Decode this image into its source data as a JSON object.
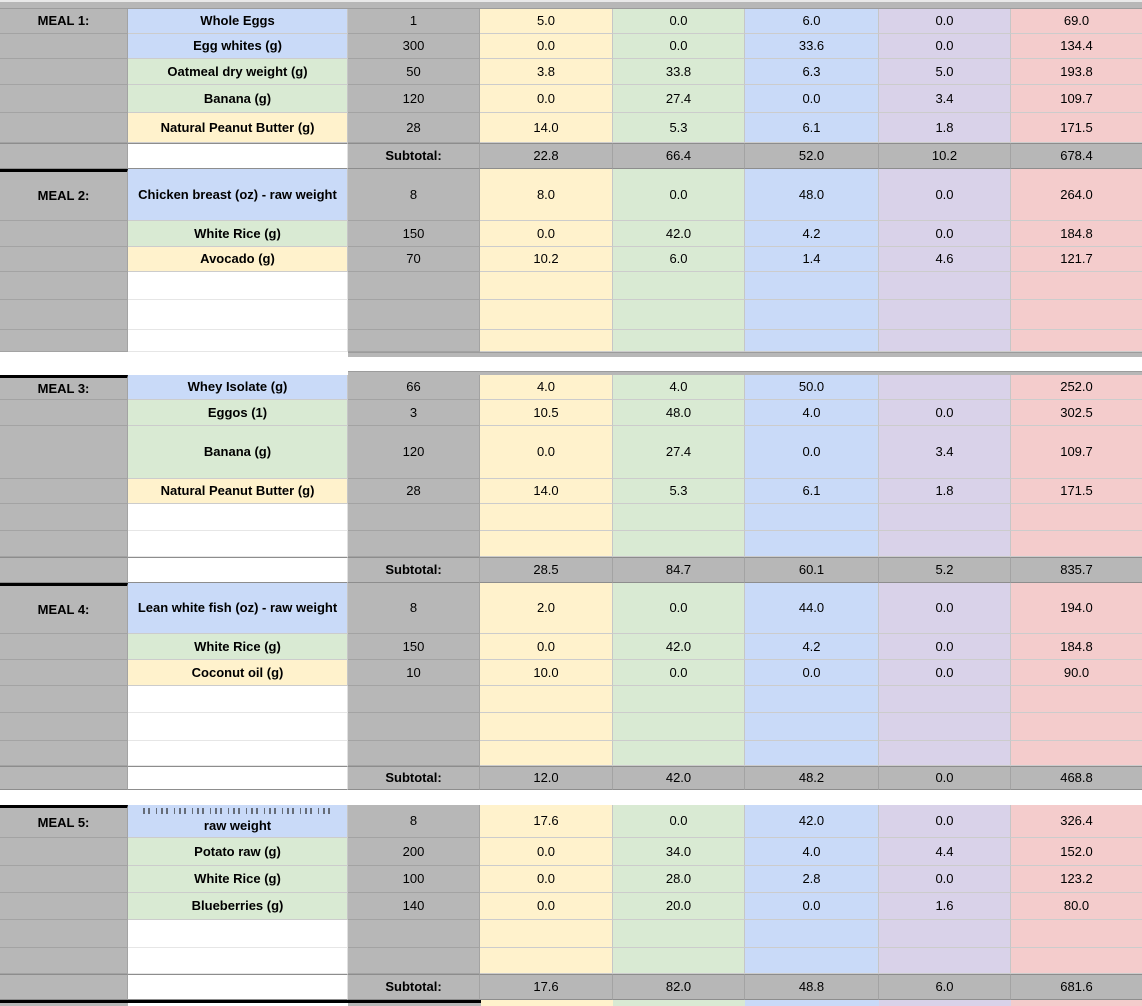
{
  "colors": {
    "gray": "#b7b7b7",
    "blue": "#c9daf8",
    "green": "#d9ead3",
    "yellow": "#fff2cc",
    "purple": "#d9d2e9",
    "pink": "#f4cccc",
    "value_columns": [
      "yellow",
      "green",
      "blue",
      "purple",
      "pink"
    ]
  },
  "sections": [
    {
      "rows": [
        {
          "type": "item",
          "meal": "MEAL 1:",
          "food": "Whole Eggs",
          "food_color": "blue",
          "qty": "1",
          "values": [
            "5.0",
            "0.0",
            "6.0",
            "0.0",
            "69.0"
          ]
        },
        {
          "type": "item",
          "food": "Egg whites (g)",
          "food_color": "blue",
          "qty": "300",
          "values": [
            "0.0",
            "0.0",
            "33.6",
            "0.0",
            "134.4"
          ]
        },
        {
          "type": "item",
          "food": "Oatmeal dry weight (g)",
          "food_color": "green",
          "qty": "50",
          "values": [
            "3.8",
            "33.8",
            "6.3",
            "5.0",
            "193.8"
          ]
        },
        {
          "type": "item",
          "food": "Banana (g)",
          "food_color": "green",
          "qty": "120",
          "values": [
            "0.0",
            "27.4",
            "0.0",
            "3.4",
            "109.7"
          ]
        },
        {
          "type": "item",
          "food": "Natural Peanut Butter (g)",
          "food_color": "yellow",
          "qty": "28",
          "values": [
            "14.0",
            "5.3",
            "6.1",
            "1.8",
            "171.5"
          ]
        },
        {
          "type": "subtotal",
          "label": "Subtotal:",
          "values": [
            "22.8",
            "66.4",
            "52.0",
            "10.2",
            "678.4"
          ]
        },
        {
          "type": "item",
          "meal": "MEAL 2:",
          "section_start": true,
          "food": "Chicken breast (oz) - raw weight",
          "food_color": "blue",
          "qty": "8",
          "values": [
            "8.0",
            "0.0",
            "48.0",
            "0.0",
            "264.0"
          ]
        },
        {
          "type": "item",
          "food": "White Rice  (g)",
          "food_color": "green",
          "qty": "150",
          "values": [
            "0.0",
            "42.0",
            "4.2",
            "0.0",
            "184.8"
          ]
        },
        {
          "type": "item",
          "food": "Avocado (g)",
          "food_color": "yellow",
          "qty": "70",
          "values": [
            "10.2",
            "6.0",
            "1.4",
            "4.6",
            "121.7"
          ]
        },
        {
          "type": "empty"
        },
        {
          "type": "empty"
        },
        {
          "type": "empty"
        }
      ]
    },
    {
      "rows": [
        {
          "type": "item",
          "meal": "MEAL 3:",
          "section_start": true,
          "food": "Whey Isolate (g)",
          "food_color": "blue",
          "qty": "66",
          "values": [
            "4.0",
            "4.0",
            "50.0",
            "",
            "252.0"
          ]
        },
        {
          "type": "item",
          "food": "Eggos (1)",
          "food_color": "green",
          "qty": "3",
          "values": [
            "10.5",
            "48.0",
            "4.0",
            "0.0",
            "302.5"
          ]
        },
        {
          "type": "item",
          "food": "Banana (g)",
          "food_color": "green",
          "qty": "120",
          "values": [
            "0.0",
            "27.4",
            "0.0",
            "3.4",
            "109.7"
          ]
        },
        {
          "type": "item",
          "food": "Natural Peanut Butter (g)",
          "food_color": "yellow",
          "qty": "28",
          "values": [
            "14.0",
            "5.3",
            "6.1",
            "1.8",
            "171.5"
          ]
        },
        {
          "type": "empty"
        },
        {
          "type": "empty"
        },
        {
          "type": "subtotal",
          "label": "Subtotal:",
          "values": [
            "28.5",
            "84.7",
            "60.1",
            "5.2",
            "835.7"
          ]
        },
        {
          "type": "item",
          "meal": "MEAL 4:",
          "section_start": true,
          "food": "Lean white fish (oz) - raw weight",
          "food_color": "blue",
          "qty": "8",
          "values": [
            "2.0",
            "0.0",
            "44.0",
            "0.0",
            "194.0"
          ]
        },
        {
          "type": "item",
          "food": "White Rice  (g)",
          "food_color": "green",
          "qty": "150",
          "values": [
            "0.0",
            "42.0",
            "4.2",
            "0.0",
            "184.8"
          ]
        },
        {
          "type": "item",
          "food": "Coconut oil (g)",
          "food_color": "yellow",
          "qty": "10",
          "values": [
            "10.0",
            "0.0",
            "0.0",
            "0.0",
            "90.0"
          ]
        },
        {
          "type": "empty"
        },
        {
          "type": "empty"
        },
        {
          "type": "empty"
        },
        {
          "type": "subtotal",
          "label": "Subtotal:",
          "values": [
            "12.0",
            "42.0",
            "48.2",
            "0.0",
            "468.8"
          ]
        }
      ]
    },
    {
      "rows": [
        {
          "type": "item",
          "meal": "MEAL 5:",
          "section_start": true,
          "clipped_line": true,
          "food": "raw weight",
          "food_color": "blue",
          "qty": "8",
          "values": [
            "17.6",
            "0.0",
            "42.0",
            "0.0",
            "326.4"
          ]
        },
        {
          "type": "item",
          "food": "Potato raw (g)",
          "food_color": "green",
          "qty": "200",
          "values": [
            "0.0",
            "34.0",
            "4.0",
            "4.4",
            "152.0"
          ]
        },
        {
          "type": "item",
          "food": "White Rice  (g)",
          "food_color": "green",
          "qty": "100",
          "values": [
            "0.0",
            "28.0",
            "2.8",
            "0.0",
            "123.2"
          ]
        },
        {
          "type": "item",
          "food": "Blueberries (g)",
          "food_color": "green",
          "qty": "140",
          "values": [
            "0.0",
            "20.0",
            "0.0",
            "1.6",
            "80.0"
          ]
        },
        {
          "type": "empty"
        },
        {
          "type": "empty"
        },
        {
          "type": "subtotal",
          "label": "Subtotal:",
          "values": [
            "17.6",
            "82.0",
            "48.8",
            "6.0",
            "681.6"
          ]
        }
      ]
    }
  ]
}
